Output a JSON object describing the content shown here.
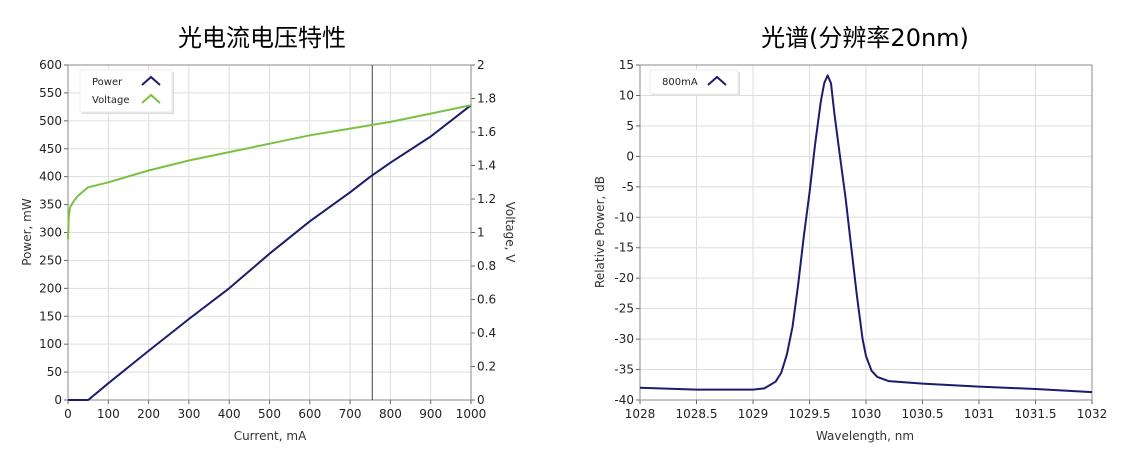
{
  "chart_data": [
    {
      "type": "line",
      "title": "光电流电压特性",
      "xlabel": "Current, mA",
      "ylabel": "Power, mW",
      "y2label": "Voltage, V",
      "xlim": [
        0,
        1000
      ],
      "ylim": [
        0,
        600
      ],
      "y2lim": [
        0,
        2
      ],
      "xticks": [
        "0",
        "100",
        "200",
        "300",
        "400",
        "500",
        "600",
        "700",
        "800",
        "900",
        "1000"
      ],
      "yticks": [
        "0",
        "50",
        "100",
        "150",
        "200",
        "250",
        "300",
        "350",
        "400",
        "450",
        "500",
        "550",
        "600"
      ],
      "y2ticks": [
        "0",
        "0.2",
        "0.4",
        "0.6",
        "0.8",
        "1",
        "1.2",
        "1.4",
        "1.6",
        "1.8",
        "2"
      ],
      "grid": true,
      "legend": "top-left",
      "cursor_x": 755,
      "series": [
        {
          "name": "Power",
          "axis": "left",
          "color": "#1c1c6e",
          "x": [
            0,
            50,
            100,
            200,
            300,
            400,
            500,
            600,
            700,
            750,
            800,
            900,
            1000
          ],
          "y": [
            0,
            0,
            30,
            88,
            145,
            200,
            262,
            320,
            372,
            400,
            425,
            472,
            528
          ]
        },
        {
          "name": "Voltage",
          "axis": "right",
          "color": "#7ac142",
          "x": [
            0,
            2,
            5,
            15,
            25,
            40,
            50,
            100,
            200,
            300,
            400,
            500,
            600,
            700,
            800,
            900,
            1000
          ],
          "y": [
            0.96,
            1.1,
            1.15,
            1.19,
            1.22,
            1.25,
            1.27,
            1.3,
            1.37,
            1.43,
            1.48,
            1.53,
            1.58,
            1.62,
            1.66,
            1.71,
            1.76
          ]
        }
      ]
    },
    {
      "type": "line",
      "title": "光谱(分辨率20nm)",
      "xlabel": "Wavelength, nm",
      "ylabel": "Relative Power, dB",
      "xlim": [
        1028,
        1032
      ],
      "ylim": [
        -40,
        15
      ],
      "xticks": [
        "1028",
        "1028.5",
        "1029",
        "1029.5",
        "1030",
        "1030.5",
        "1031",
        "1031.5",
        "1032"
      ],
      "yticks": [
        "-40",
        "-35",
        "-30",
        "-25",
        "-20",
        "-15",
        "-10",
        "-5",
        "0",
        "5",
        "10",
        "15"
      ],
      "grid": true,
      "legend": "top-left",
      "series": [
        {
          "name": "800mA",
          "color": "#1c1c6e",
          "x": [
            1028,
            1028.5,
            1029,
            1029.1,
            1029.2,
            1029.25,
            1029.3,
            1029.35,
            1029.4,
            1029.45,
            1029.5,
            1029.55,
            1029.6,
            1029.63,
            1029.66,
            1029.69,
            1029.72,
            1029.77,
            1029.82,
            1029.87,
            1029.92,
            1029.97,
            1030.0,
            1030.05,
            1030.1,
            1030.2,
            1030.5,
            1031,
            1031.5,
            1032
          ],
          "y": [
            -38,
            -38.3,
            -38.3,
            -38.1,
            -37,
            -35.5,
            -32.5,
            -28,
            -21,
            -13,
            -6,
            2,
            9,
            12,
            13.3,
            12,
            7,
            0,
            -7,
            -15,
            -23,
            -30,
            -32.8,
            -35.2,
            -36.2,
            -36.9,
            -37.3,
            -37.8,
            -38.2,
            -38.7
          ]
        }
      ]
    }
  ]
}
